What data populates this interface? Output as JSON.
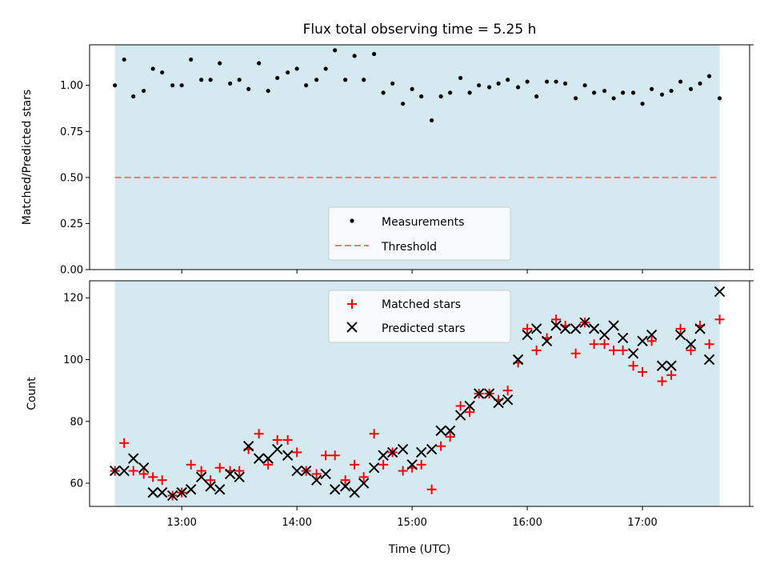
{
  "chart_data": {
    "title": "Flux total observing time = 5.25 h",
    "xlabel": "Time (UTC)",
    "x_range_hours": [
      12.2,
      17.93
    ],
    "x_ticks": [
      {
        "value": 13.0,
        "label": "13:00"
      },
      {
        "value": 14.0,
        "label": "14:00"
      },
      {
        "value": 15.0,
        "label": "15:00"
      },
      {
        "value": 16.0,
        "label": "16:00"
      },
      {
        "value": 17.0,
        "label": "17:00"
      }
    ],
    "shaded_span_hours": [
      12.42,
      17.67
    ],
    "colors": {
      "shade": "#d4eaf0",
      "measurements": "#000000",
      "threshold": "#f07a7a",
      "matched": "#ff0000",
      "predicted": "#000000"
    },
    "top_panel": {
      "type": "scatter",
      "ylabel": "Matched/Predicted stars",
      "ylim": [
        0,
        1.22
      ],
      "y_ticks": [
        "0.00",
        "0.25",
        "0.50",
        "0.75",
        "1.00"
      ],
      "threshold": 0.5,
      "legend": {
        "measurements": "Measurements",
        "threshold": "Threshold"
      },
      "x": [
        12.42,
        12.5,
        12.58,
        12.67,
        12.75,
        12.83,
        12.92,
        13.0,
        13.08,
        13.17,
        13.25,
        13.33,
        13.42,
        13.5,
        13.58,
        13.67,
        13.75,
        13.83,
        13.92,
        14.0,
        14.08,
        14.17,
        14.25,
        14.33,
        14.42,
        14.5,
        14.58,
        14.67,
        14.75,
        14.83,
        14.92,
        15.0,
        15.08,
        15.17,
        15.25,
        15.33,
        15.42,
        15.5,
        15.58,
        15.67,
        15.75,
        15.83,
        15.92,
        16.0,
        16.08,
        16.17,
        16.25,
        16.33,
        16.42,
        16.5,
        16.58,
        16.67,
        16.75,
        16.83,
        16.92,
        17.0,
        17.08,
        17.17,
        17.25,
        17.33,
        17.42,
        17.5,
        17.58,
        17.67
      ],
      "values": [
        1.0,
        1.14,
        0.94,
        0.97,
        1.09,
        1.07,
        1.0,
        1.0,
        1.14,
        1.03,
        1.03,
        1.12,
        1.01,
        1.03,
        0.98,
        1.12,
        0.97,
        1.04,
        1.07,
        1.09,
        1.0,
        1.03,
        1.09,
        1.19,
        1.03,
        1.16,
        1.03,
        1.17,
        0.96,
        1.01,
        0.9,
        0.98,
        0.94,
        0.81,
        0.94,
        0.96,
        1.04,
        0.96,
        1.0,
        0.99,
        1.01,
        1.03,
        0.99,
        1.02,
        0.94,
        1.02,
        1.02,
        1.01,
        0.93,
        1.0,
        0.96,
        0.97,
        0.93,
        0.96,
        0.96,
        0.9,
        0.98,
        0.95,
        0.97,
        1.02,
        0.98,
        1.01,
        1.05,
        0.93
      ]
    },
    "bottom_panel": {
      "type": "scatter",
      "ylabel": "Count",
      "ylim": [
        52.5,
        125.5
      ],
      "y_ticks": [
        "60",
        "80",
        "100",
        "120"
      ],
      "legend": {
        "matched": "Matched stars",
        "predicted": "Predicted stars"
      },
      "x": [
        12.42,
        12.5,
        12.58,
        12.67,
        12.75,
        12.83,
        12.92,
        13.0,
        13.08,
        13.17,
        13.25,
        13.33,
        13.42,
        13.5,
        13.58,
        13.67,
        13.75,
        13.83,
        13.92,
        14.0,
        14.08,
        14.17,
        14.25,
        14.33,
        14.42,
        14.5,
        14.58,
        14.67,
        14.75,
        14.83,
        14.92,
        15.0,
        15.08,
        15.17,
        15.25,
        15.33,
        15.42,
        15.5,
        15.58,
        15.67,
        15.75,
        15.83,
        15.92,
        16.0,
        16.08,
        16.17,
        16.25,
        16.33,
        16.42,
        16.5,
        16.58,
        16.67,
        16.75,
        16.83,
        16.92,
        17.0,
        17.08,
        17.17,
        17.25,
        17.33,
        17.42,
        17.5,
        17.58,
        17.67
      ],
      "matched": [
        64,
        73,
        64,
        63,
        62,
        61,
        56,
        57,
        66,
        64,
        61,
        65,
        64,
        64,
        71,
        76,
        66,
        74,
        74,
        70,
        64,
        63,
        69,
        69,
        61,
        66,
        62,
        76,
        66,
        70,
        64,
        65,
        66,
        58,
        72,
        75,
        85,
        83,
        89,
        89,
        87,
        90,
        99,
        110,
        103,
        107,
        113,
        111,
        102,
        112,
        105,
        105,
        103,
        103,
        98,
        96,
        106,
        93,
        95,
        110,
        103,
        111,
        105,
        113
      ],
      "predicted": [
        64,
        64,
        68,
        65,
        57,
        57,
        56,
        57,
        58,
        62,
        59,
        58,
        63,
        62,
        72,
        68,
        68,
        71,
        69,
        64,
        64,
        61,
        63,
        58,
        59,
        57,
        60,
        65,
        69,
        70,
        71,
        66,
        70,
        71,
        77,
        77,
        82,
        85,
        89,
        89,
        86,
        87,
        100,
        108,
        110,
        106,
        111,
        110,
        110,
        112,
        110,
        108,
        111,
        107,
        102,
        106,
        108,
        98,
        98,
        108,
        105,
        110,
        100,
        122
      ]
    }
  }
}
